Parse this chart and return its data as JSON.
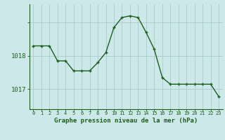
{
  "hours": [
    0,
    1,
    2,
    3,
    4,
    5,
    6,
    7,
    8,
    9,
    10,
    11,
    12,
    13,
    14,
    15,
    16,
    17,
    18,
    19,
    20,
    21,
    22,
    23
  ],
  "pressure": [
    1018.3,
    1018.3,
    1018.3,
    1017.85,
    1017.85,
    1017.55,
    1017.55,
    1017.55,
    1017.8,
    1018.1,
    1018.85,
    1019.15,
    1019.2,
    1019.15,
    1018.7,
    1018.2,
    1017.35,
    1017.15,
    1017.15,
    1017.15,
    1017.15,
    1017.15,
    1017.15,
    1016.78
  ],
  "ylim": [
    1016.4,
    1019.55
  ],
  "yticks": [
    1017.0,
    1018.0,
    1019.0
  ],
  "ylabel_values": [
    "1017",
    "1018",
    ""
  ],
  "xlabel": "Graphe pression niveau de la mer (hPa)",
  "background_color": "#cce8e8",
  "grid_color": "#aacccc",
  "line_color": "#1e5e1e",
  "marker_color": "#1e5e1e",
  "tick_label_color": "#1e5e1e",
  "axis_color": "#1e5e1e",
  "xlabel_color": "#1e5e1e"
}
